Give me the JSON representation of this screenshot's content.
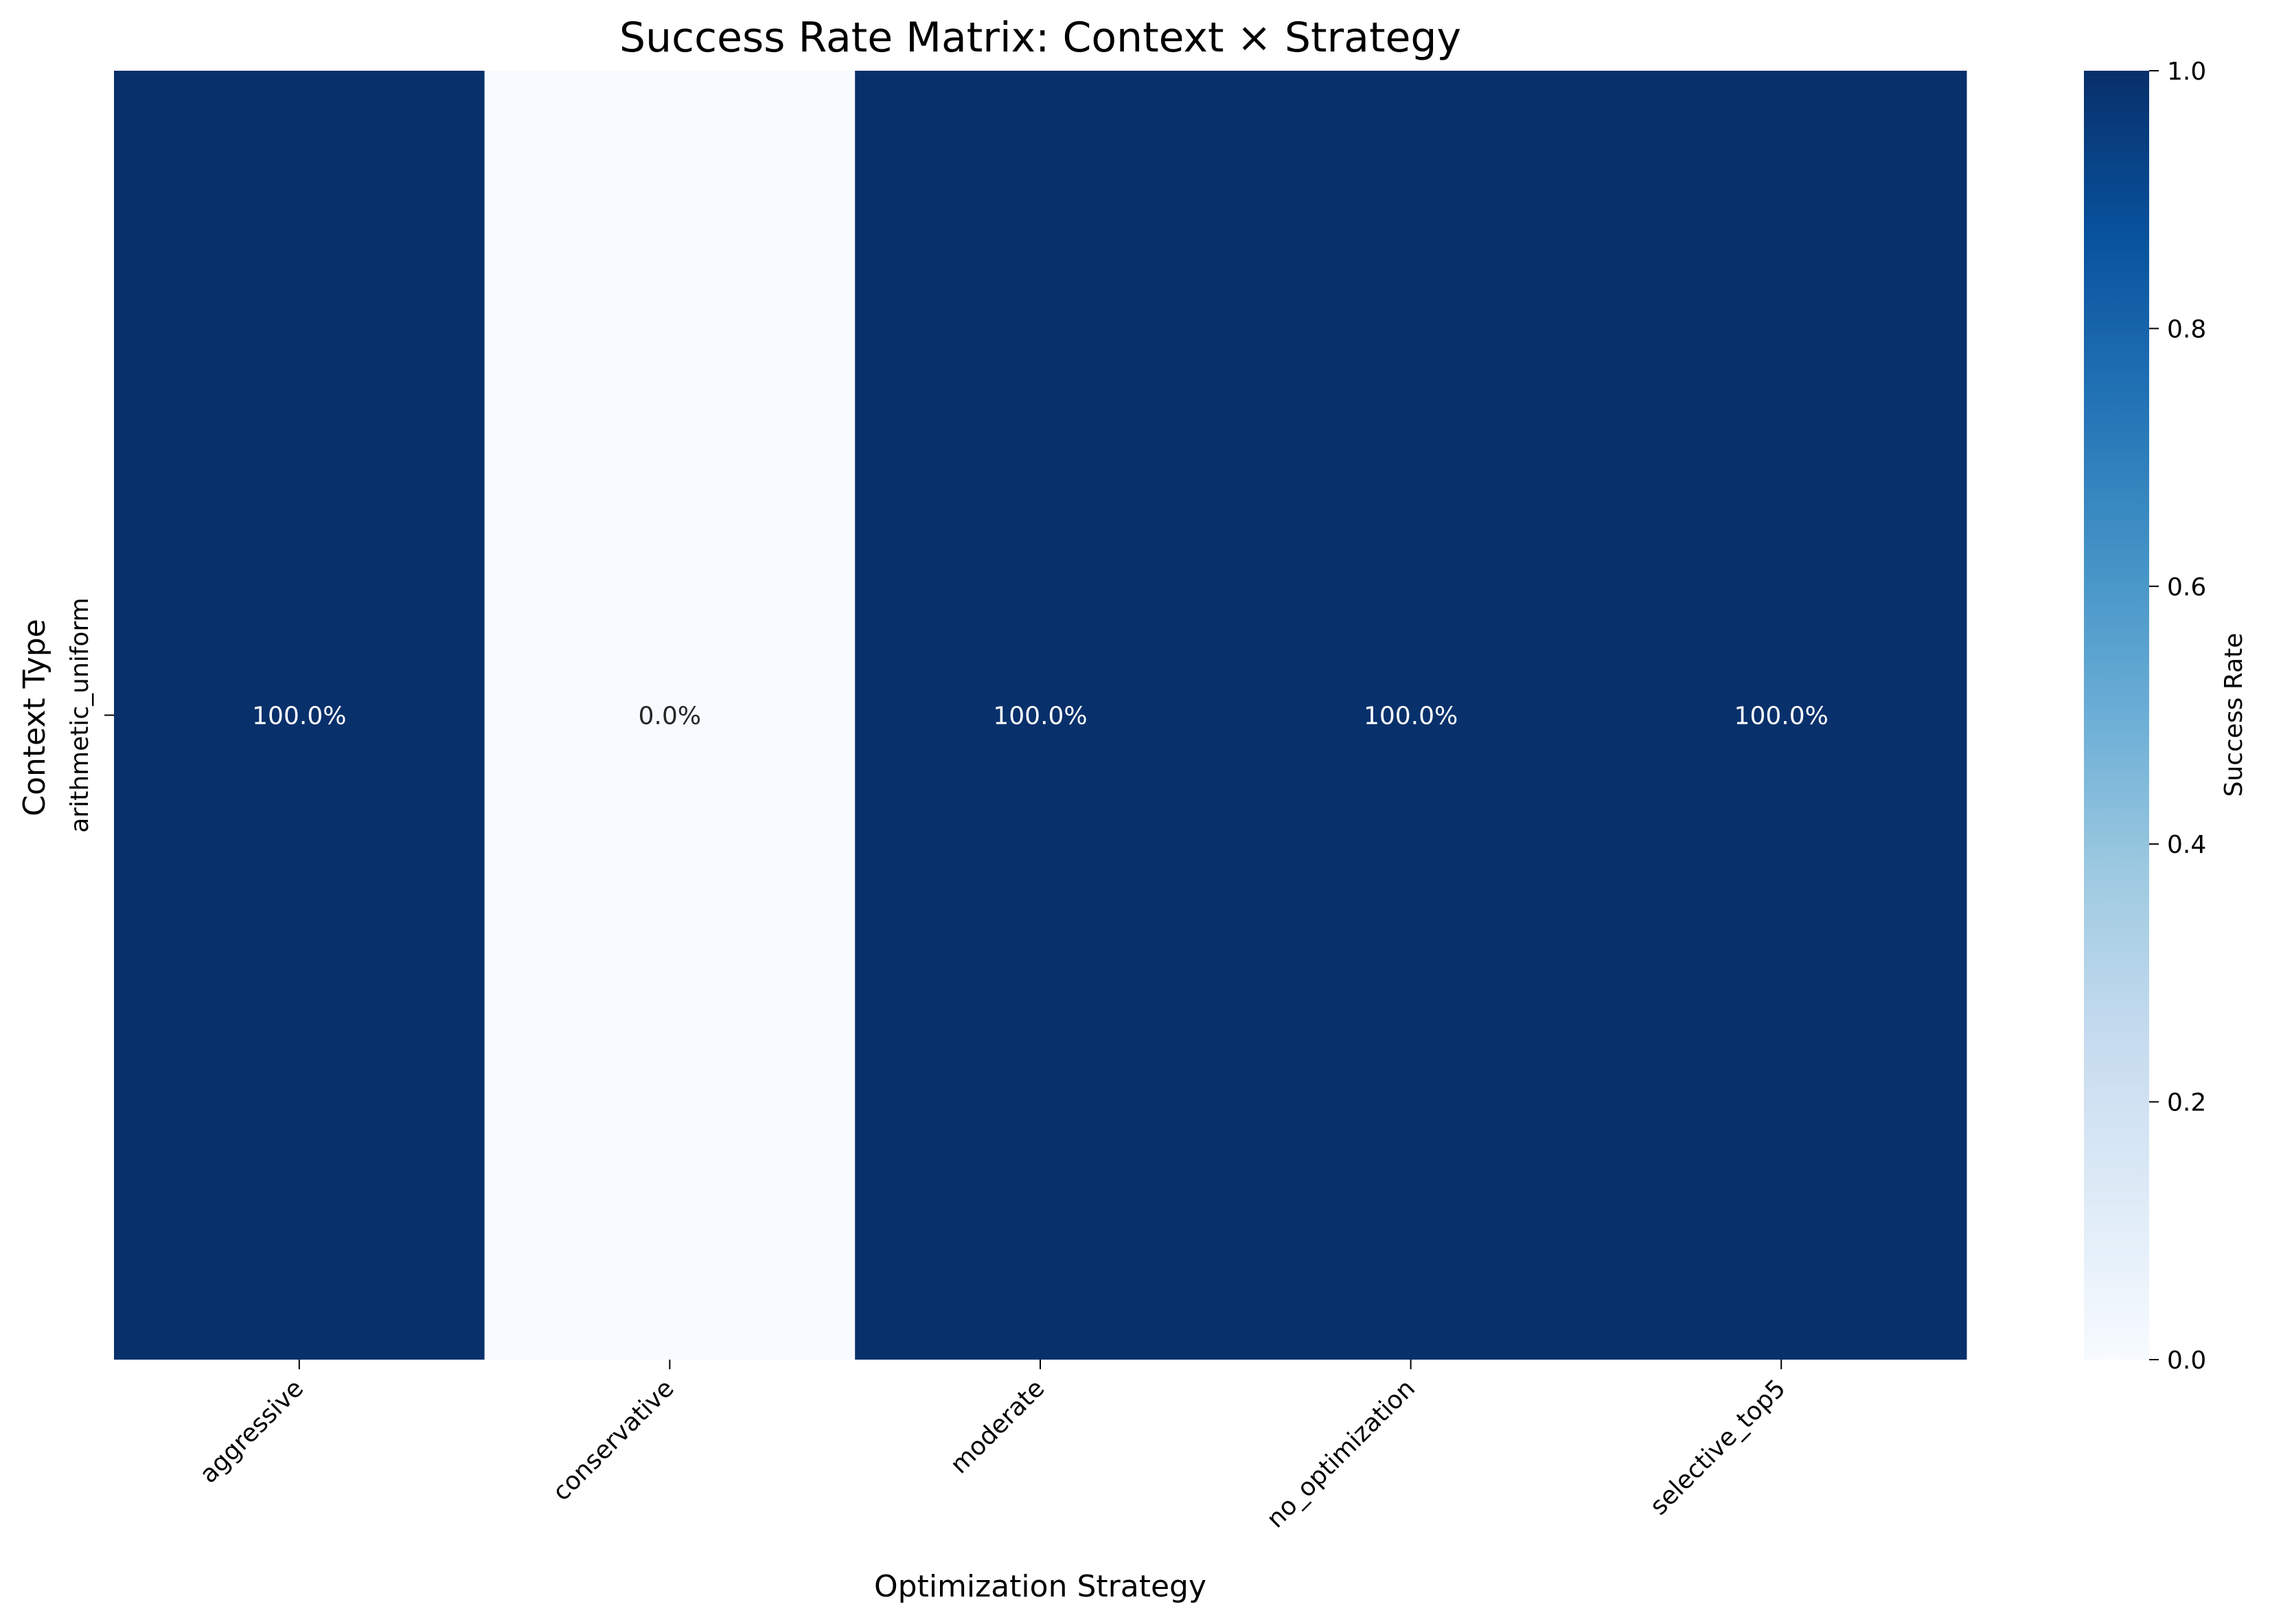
{
  "chart_data": {
    "type": "heatmap",
    "title": "Success Rate Matrix: Context × Strategy",
    "xlabel": "Optimization Strategy",
    "ylabel": "Context Type",
    "x_categories": [
      "aggressive",
      "conservative",
      "moderate",
      "no_optimization",
      "selective_top5"
    ],
    "y_categories": [
      "arithmetic_uniform"
    ],
    "values": [
      [
        1.0,
        0.0,
        1.0,
        1.0,
        1.0
      ]
    ],
    "cell_labels": [
      [
        "100.0%",
        "0.0%",
        "100.0%",
        "100.0%",
        "100.0%"
      ]
    ],
    "colormap": "Blues",
    "colormap_stops": [
      "#f7fbff",
      "#deebf7",
      "#c6dbef",
      "#9ecae1",
      "#6baed6",
      "#4292c6",
      "#2171b5",
      "#08519c",
      "#08306b"
    ],
    "colorbar": {
      "label": "Success Rate",
      "range": [
        0.0,
        1.0
      ],
      "ticks": [
        0.0,
        0.2,
        0.4,
        0.6,
        0.8,
        1.0
      ],
      "tick_labels": [
        "0.0",
        "0.2",
        "0.4",
        "0.6",
        "0.8",
        "1.0"
      ]
    }
  }
}
